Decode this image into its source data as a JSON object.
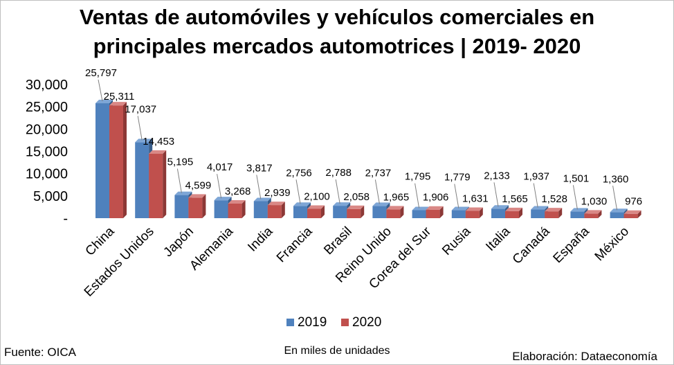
{
  "chart_data": {
    "type": "bar",
    "title_line1": "Ventas de automóviles y vehículos comerciales en",
    "title_line2": "principales mercados automotrices | 2019- 2020",
    "categories": [
      "China",
      "Estados Unidos",
      "Japón",
      "Alemania",
      "India",
      "Francia",
      "Brasil",
      "Reino Unido",
      "Corea del Sur",
      "Rusia",
      "Italia",
      "Canadá",
      "España",
      "México"
    ],
    "series": [
      {
        "name": "2019",
        "color": "#4f81bd",
        "side_color": "#385d8a",
        "top_color": "#7ea6d6",
        "values": [
          25797,
          17037,
          5195,
          4017,
          3817,
          2756,
          2788,
          2737,
          1795,
          1779,
          2133,
          1937,
          1501,
          1360
        ],
        "labels": [
          "25,797",
          "17,037",
          "5,195",
          "4,017",
          "3,817",
          "2,756",
          "2,788",
          "2,737",
          "1,795",
          "1,779",
          "2,133",
          "1,937",
          "1,501",
          "1,360"
        ]
      },
      {
        "name": "2020",
        "color": "#c0504d",
        "side_color": "#8c3836",
        "top_color": "#d98886",
        "values": [
          25311,
          14453,
          4599,
          3268,
          2939,
          2100,
          2058,
          1965,
          1906,
          1631,
          1565,
          1528,
          1030,
          976
        ],
        "labels": [
          "25,311",
          "14,453",
          "4,599",
          "3,268",
          "2,939",
          "2,100",
          "2,058",
          "1,965",
          "1,906",
          "1,631",
          "1,565",
          "1,528",
          "1,030",
          "976"
        ]
      }
    ],
    "yticks": [
      0,
      5000,
      10000,
      15000,
      20000,
      25000,
      30000
    ],
    "ytick_labels": [
      "-",
      "5,000",
      "10,000",
      "15,000",
      "20,000",
      "25,000",
      "30,000"
    ],
    "ylim": [
      0,
      30000
    ],
    "grid": false,
    "legend_position": "bottom"
  },
  "footer": {
    "source": "Fuente: OICA",
    "units": "En miles de unidades",
    "credit": "Elaboración: Dataeconomía"
  }
}
